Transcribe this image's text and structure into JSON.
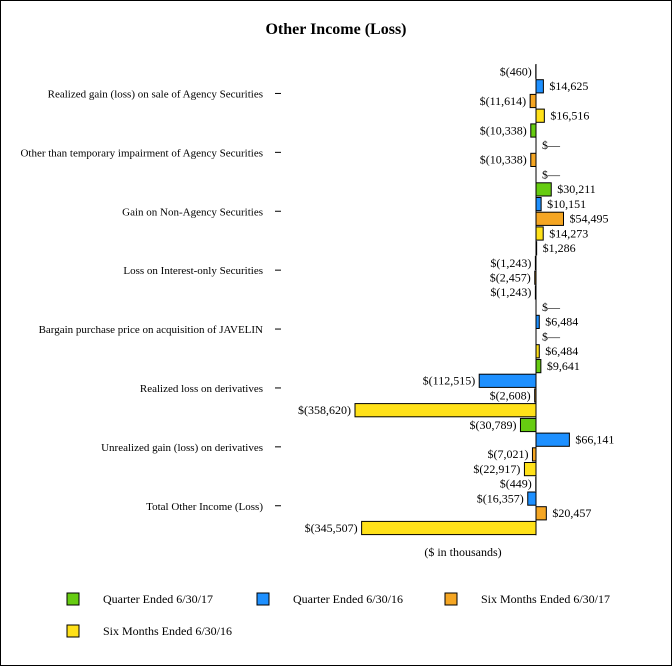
{
  "chart_data": {
    "type": "bar",
    "orientation": "horizontal",
    "title": "Other Income (Loss)",
    "xlabel": "($ in thousands)",
    "grid": false,
    "legend_position": "bottom",
    "categories": [
      "Realized gain (loss) on sale of Agency Securities",
      "Other than temporary impairment of Agency Securities",
      "Gain on Non-Agency Securities",
      "Loss on Interest-only Securities",
      "Bargain purchase price on acquisition of JAVELIN",
      "Realized loss on derivatives",
      "Unrealized gain (loss) on derivatives",
      "Total Other Income (Loss)"
    ],
    "series": [
      {
        "name": "Quarter Ended 6/30/17",
        "color": "#66CC11",
        "values": [
          -460,
          -10338,
          30211,
          1286,
          0,
          9641,
          -30789,
          -449
        ],
        "labels": [
          "$(460)",
          "$(10,338)",
          "$30,211",
          "$1,286",
          "$—",
          "$9,641",
          "$(30,789)",
          "$(449)"
        ]
      },
      {
        "name": "Quarter Ended 6/30/16",
        "color": "#1E90FF",
        "values": [
          14625,
          0,
          10151,
          -1243,
          6484,
          -112515,
          66141,
          -16357
        ],
        "labels": [
          "$14,625",
          "$—",
          "$10,151",
          "$(1,243)",
          "$6,484",
          "$(112,515)",
          "$66,141",
          "$(16,357)"
        ]
      },
      {
        "name": "Six Months Ended 6/30/17",
        "color": "#F5A623",
        "values": [
          -11614,
          -10338,
          54495,
          -2457,
          0,
          -2608,
          -7021,
          20457
        ],
        "labels": [
          "$(11,614)",
          "$(10,338)",
          "$54,495",
          "$(2,457)",
          "$—",
          "$(2,608)",
          "$(7,021)",
          "$20,457"
        ]
      },
      {
        "name": "Six Months Ended 6/30/16",
        "color": "#FFE119",
        "values": [
          16516,
          0,
          14273,
          -1243,
          6484,
          -358620,
          -22917,
          -345507
        ],
        "labels": [
          "$16,516",
          "$—",
          "$14,273",
          "$(1,243)",
          "$6,484",
          "$(358,620)",
          "$(22,917)",
          "$(345,507)"
        ]
      }
    ]
  }
}
